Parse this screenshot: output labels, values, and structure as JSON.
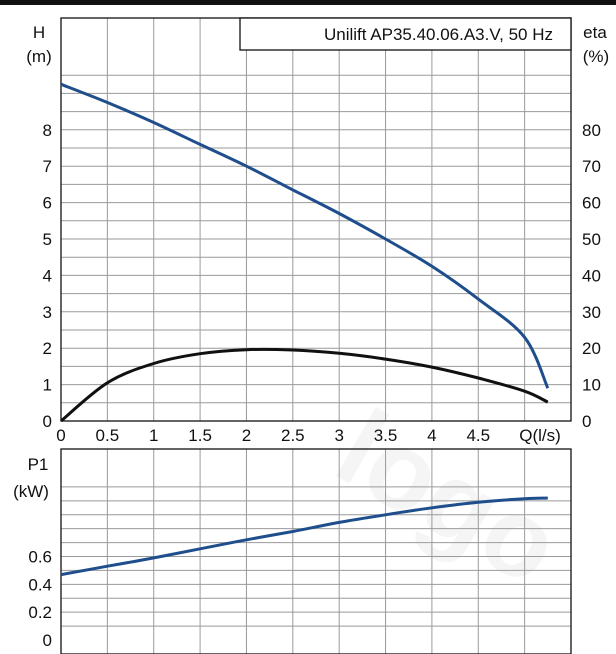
{
  "chart_data": [
    {
      "type": "line",
      "title": "Unilift AP35.40.06.A3.V, 50 Hz",
      "xlabel": "Q(l/s)",
      "ylabel_left": "H",
      "ylabel_left_unit": "(m)",
      "ylabel_right": "eta",
      "ylabel_right_unit": "(%)",
      "xlim": [
        0,
        5.5
      ],
      "ylim": [
        0,
        10
      ],
      "ylim_right": [
        0,
        100
      ],
      "x_ticks": [
        "0",
        "0.5",
        "1",
        "1.5",
        "2",
        "2.5",
        "3",
        "3.5",
        "4",
        "4.5"
      ],
      "y_ticks": [
        "0",
        "1",
        "2",
        "3",
        "4",
        "5",
        "6",
        "7",
        "8"
      ],
      "y_right_ticks": [
        "0",
        "10",
        "20",
        "30",
        "40",
        "50",
        "60",
        "70",
        "80"
      ],
      "grid": true,
      "series": [
        {
          "axis": "left",
          "color": "#1f4e8c",
          "x": [
            0,
            0.5,
            1.0,
            1.5,
            2.0,
            2.5,
            3.0,
            3.5,
            4.0,
            4.5,
            5.0,
            5.25
          ],
          "y": [
            9.25,
            8.75,
            8.2,
            7.6,
            7.0,
            6.35,
            5.7,
            5.0,
            4.25,
            3.35,
            2.3,
            0.9
          ]
        },
        {
          "axis": "right",
          "color": "#111111",
          "x": [
            0,
            0.5,
            1.0,
            1.5,
            2.0,
            2.5,
            3.0,
            3.5,
            4.0,
            4.5,
            5.0,
            5.25
          ],
          "y": [
            0,
            10.5,
            15.8,
            18.5,
            19.6,
            19.5,
            18.6,
            17.0,
            14.8,
            11.8,
            8.2,
            5.2
          ]
        }
      ]
    },
    {
      "type": "line",
      "ylabel": "P1",
      "ylabel_unit": "(kW)",
      "xlim": [
        0,
        5.5
      ],
      "ylim": [
        0,
        1.2
      ],
      "y_ticks": [
        "0",
        "0.2",
        "0.4",
        "0.6"
      ],
      "grid": true,
      "series": [
        {
          "color": "#1f4e8c",
          "x": [
            0,
            0.5,
            1.0,
            1.5,
            2.0,
            2.5,
            3.0,
            3.5,
            4.0,
            4.5,
            5.0,
            5.25
          ],
          "y": [
            0.47,
            0.53,
            0.59,
            0.655,
            0.72,
            0.78,
            0.845,
            0.9,
            0.95,
            0.99,
            1.015,
            1.02
          ]
        }
      ]
    }
  ]
}
